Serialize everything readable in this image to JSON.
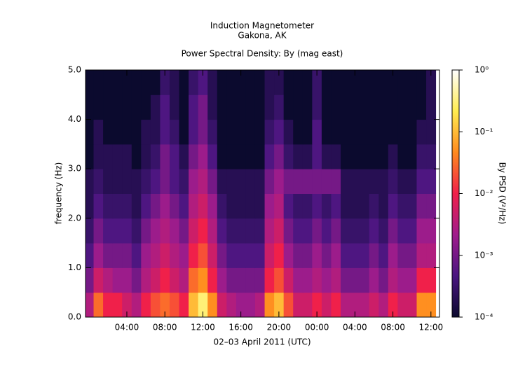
{
  "chart_data": {
    "type": "heatmap",
    "title": "Induction Magnetometer",
    "subtitle": "Gakona, AK",
    "plot_title": "Power Spectral Density: By (mag east)",
    "xlabel": "02–03 April 2011 (UTC)",
    "ylabel": "frequency (Hz)",
    "colorbar_label": "By PSD (V²/Hz)",
    "xlim": [
      -0.35,
      36.9
    ],
    "xticks": [
      {
        "value": 4,
        "label": "04:00"
      },
      {
        "value": 8,
        "label": "08:00"
      },
      {
        "value": 12,
        "label": "12:00"
      },
      {
        "value": 16,
        "label": "16:00"
      },
      {
        "value": 20,
        "label": "20:00"
      },
      {
        "value": 24,
        "label": "00:00"
      },
      {
        "value": 28,
        "label": "04:00"
      },
      {
        "value": 32,
        "label": "08:00"
      },
      {
        "value": 36,
        "label": "12:00"
      }
    ],
    "ylim": [
      0,
      5
    ],
    "yticks": [
      {
        "value": 0,
        "label": "0.0"
      },
      {
        "value": 1,
        "label": "1.0"
      },
      {
        "value": 2,
        "label": "2.0"
      },
      {
        "value": 3,
        "label": "3.0"
      },
      {
        "value": 4,
        "label": "4.0"
      },
      {
        "value": 5,
        "label": "5.0"
      }
    ],
    "zlim": [
      0.0001,
      1
    ],
    "zscale": "log",
    "zticks": [
      {
        "value": 0.0001,
        "label": "10⁻⁴"
      },
      {
        "value": 0.001,
        "label": "10⁻³"
      },
      {
        "value": 0.01,
        "label": "10⁻²"
      },
      {
        "value": 0.1,
        "label": "10⁻¹"
      },
      {
        "value": 1,
        "label": "10⁰"
      }
    ],
    "colorscale": [
      "#0b0a2e",
      "#4a1680",
      "#a01c8c",
      "#f0204a",
      "#ff8a1e",
      "#ffec50",
      "#ffffff"
    ],
    "x": [
      0,
      1,
      2,
      3,
      4,
      5,
      6,
      7,
      8,
      9,
      10,
      11,
      12,
      13,
      14,
      15,
      16,
      17,
      18,
      19,
      20,
      21,
      22,
      23,
      24,
      25,
      26,
      27,
      28,
      29,
      30,
      31,
      32,
      33,
      34,
      35,
      36
    ],
    "y": [
      0.25,
      0.75,
      1.25,
      1.75,
      2.25,
      2.75,
      3.25,
      3.75,
      4.25,
      4.75
    ],
    "z": [
      [
        0.003,
        0.03,
        0.01,
        0.01,
        0.005,
        0.003,
        0.01,
        0.02,
        0.03,
        0.02,
        0.01,
        0.1,
        0.3,
        0.05,
        0.005,
        0.003,
        0.002,
        0.002,
        0.003,
        0.05,
        0.1,
        0.02,
        0.005,
        0.005,
        0.01,
        0.005,
        0.01,
        0.003,
        0.003,
        0.003,
        0.005,
        0.003,
        0.01,
        0.005,
        0.005,
        0.05,
        0.05
      ],
      [
        0.001,
        0.005,
        0.003,
        0.002,
        0.002,
        0.001,
        0.003,
        0.005,
        0.01,
        0.005,
        0.003,
        0.03,
        0.05,
        0.01,
        0.002,
        0.001,
        0.001,
        0.001,
        0.001,
        0.01,
        0.02,
        0.005,
        0.002,
        0.002,
        0.003,
        0.002,
        0.003,
        0.001,
        0.001,
        0.001,
        0.002,
        0.001,
        0.003,
        0.002,
        0.002,
        0.01,
        0.01
      ],
      [
        0.0005,
        0.002,
        0.001,
        0.001,
        0.001,
        0.0005,
        0.002,
        0.003,
        0.005,
        0.003,
        0.002,
        0.01,
        0.02,
        0.005,
        0.001,
        0.0005,
        0.0005,
        0.0005,
        0.0005,
        0.005,
        0.01,
        0.002,
        0.001,
        0.001,
        0.002,
        0.001,
        0.002,
        0.0005,
        0.0005,
        0.0005,
        0.001,
        0.0005,
        0.002,
        0.001,
        0.001,
        0.003,
        0.003
      ],
      [
        0.0003,
        0.001,
        0.0005,
        0.0005,
        0.0005,
        0.0003,
        0.001,
        0.002,
        0.003,
        0.002,
        0.001,
        0.005,
        0.01,
        0.003,
        0.0005,
        0.0003,
        0.0003,
        0.0003,
        0.0003,
        0.003,
        0.005,
        0.001,
        0.0005,
        0.0005,
        0.001,
        0.0005,
        0.001,
        0.0003,
        0.0003,
        0.0003,
        0.0005,
        0.0003,
        0.001,
        0.0005,
        0.0005,
        0.002,
        0.002
      ],
      [
        0.0002,
        0.0005,
        0.0003,
        0.0003,
        0.0003,
        0.0002,
        0.0005,
        0.001,
        0.002,
        0.001,
        0.0005,
        0.003,
        0.005,
        0.002,
        0.0003,
        0.0002,
        0.0002,
        0.0002,
        0.0002,
        0.002,
        0.003,
        0.0005,
        0.0003,
        0.0003,
        0.0005,
        0.0003,
        0.0005,
        0.0002,
        0.0002,
        0.0002,
        0.0003,
        0.0002,
        0.0005,
        0.0003,
        0.0003,
        0.001,
        0.001
      ],
      [
        0.0002,
        0.0003,
        0.0002,
        0.0002,
        0.0002,
        0.0002,
        0.0003,
        0.0005,
        0.001,
        0.0005,
        0.0003,
        0.002,
        0.003,
        0.001,
        0.0002,
        0.0002,
        0.0002,
        0.0002,
        0.0002,
        0.001,
        0.002,
        0.001,
        0.001,
        0.001,
        0.001,
        0.001,
        0.001,
        0.0002,
        0.0002,
        0.0002,
        0.0002,
        0.0002,
        0.0003,
        0.0002,
        0.0002,
        0.0005,
        0.0005
      ],
      [
        0.0001,
        0.0002,
        0.0002,
        0.0002,
        0.0002,
        0.0001,
        0.0002,
        0.0003,
        0.001,
        0.0005,
        0.0002,
        0.001,
        0.002,
        0.0005,
        0.0001,
        0.0001,
        0.0001,
        0.0001,
        0.0001,
        0.0005,
        0.001,
        0.0003,
        0.0002,
        0.0002,
        0.0005,
        0.0002,
        0.0002,
        0.0001,
        0.0001,
        0.0001,
        0.0001,
        0.0001,
        0.0002,
        0.0001,
        0.0001,
        0.0003,
        0.0003
      ],
      [
        0.0001,
        0.0002,
        0.0001,
        0.0001,
        0.0001,
        0.0001,
        0.0002,
        0.0002,
        0.0005,
        0.0003,
        0.0001,
        0.0005,
        0.001,
        0.0003,
        0.0001,
        0.0001,
        0.0001,
        0.0001,
        0.0001,
        0.0003,
        0.0005,
        0.0002,
        0.0001,
        0.0001,
        0.0005,
        0.0001,
        0.0001,
        0.0001,
        0.0001,
        0.0001,
        0.0001,
        0.0001,
        0.0001,
        0.0001,
        0.0001,
        0.0002,
        0.0002
      ],
      [
        0.0001,
        0.0001,
        0.0001,
        0.0001,
        0.0001,
        0.0001,
        0.0001,
        0.0002,
        0.0005,
        0.0002,
        0.0001,
        0.0005,
        0.001,
        0.0002,
        0.0001,
        0.0001,
        0.0001,
        0.0001,
        0.0001,
        0.0002,
        0.0003,
        0.0001,
        0.0001,
        0.0001,
        0.0003,
        0.0001,
        0.0001,
        0.0001,
        0.0001,
        0.0001,
        0.0001,
        0.0001,
        0.0001,
        0.0001,
        0.0001,
        0.0001,
        0.0002
      ],
      [
        0.0001,
        0.0001,
        0.0001,
        0.0001,
        0.0001,
        0.0001,
        0.0001,
        0.0001,
        0.0003,
        0.0002,
        0.0001,
        0.0003,
        0.0005,
        0.0002,
        0.0001,
        0.0001,
        0.0001,
        0.0001,
        0.0001,
        0.0002,
        0.0002,
        0.0001,
        0.0001,
        0.0001,
        0.0003,
        0.0001,
        0.0001,
        0.0001,
        0.0001,
        0.0001,
        0.0001,
        0.0001,
        0.0001,
        0.0001,
        0.0001,
        0.0001,
        0.0002
      ]
    ]
  }
}
